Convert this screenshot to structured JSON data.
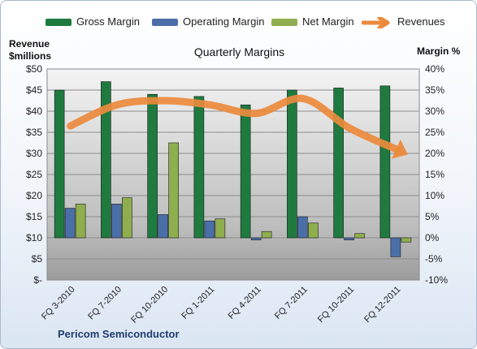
{
  "legend": {
    "gross": "Gross Margin",
    "operating": "Operating Margin",
    "net": "Net Margin",
    "revenues": "Revenues"
  },
  "left_axis_title": [
    "Revenue",
    "$millions"
  ],
  "right_axis_title": "Margin %",
  "footer": "Pericom Semiconductor",
  "colors": {
    "gross": "#1f7a3f",
    "operating": "#4a6fa8",
    "net": "#8fae4e",
    "revenues": "#ec8a3c"
  },
  "chart_data": {
    "type": "bar",
    "title": "Quarterly Margins",
    "categories": [
      "FQ 3-2010",
      "FQ 7-2010",
      "FQ 10-2010",
      "FQ 1-2011",
      "FQ 4-2011",
      "FQ 7-2011",
      "FQ 10-2011",
      "FQ 12-2011"
    ],
    "series": [
      {
        "name": "Gross Margin",
        "axis": "right",
        "values": [
          35,
          37,
          34,
          33.5,
          31.5,
          35,
          35.5,
          36
        ]
      },
      {
        "name": "Operating Margin",
        "axis": "right",
        "values": [
          7,
          8,
          5.5,
          4,
          -0.5,
          5,
          -0.5,
          -4.5
        ]
      },
      {
        "name": "Net Margin",
        "axis": "right",
        "values": [
          8,
          9.5,
          22.5,
          4.5,
          1.5,
          3.5,
          1,
          -1
        ]
      },
      {
        "name": "Revenues",
        "axis": "left",
        "type": "line",
        "values": [
          36.5,
          41.5,
          42.5,
          41.5,
          39.5,
          43,
          36,
          31
        ]
      }
    ],
    "left_axis": {
      "label": "Revenue $millions",
      "ylim": [
        0,
        50
      ],
      "ticks": [
        "$-",
        "$5",
        "$10",
        "$15",
        "$20",
        "$25",
        "$30",
        "$35",
        "$40",
        "$45",
        "$50"
      ]
    },
    "right_axis": {
      "label": "Margin %",
      "ylim": [
        -10,
        40
      ],
      "ticks": [
        "-10%",
        "-5%",
        "0%",
        "5%",
        "10%",
        "15%",
        "20%",
        "25%",
        "30%",
        "35%",
        "40%"
      ]
    },
    "grid": true,
    "legend_position": "top"
  }
}
